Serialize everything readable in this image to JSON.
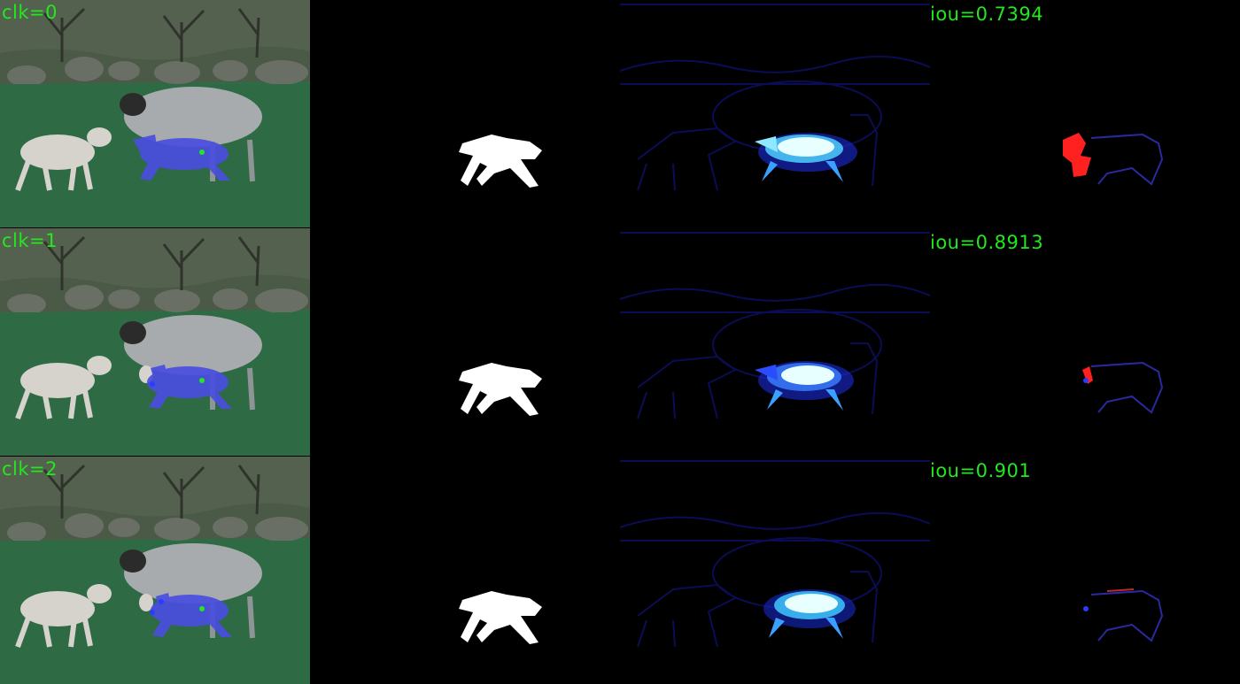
{
  "rows": [
    {
      "click_label": "clk=0",
      "iou_label": "iou=0.7394"
    },
    {
      "click_label": "clk=1",
      "iou_label": "iou=0.8913"
    },
    {
      "click_label": "clk=2",
      "iou_label": "iou=0.901"
    }
  ],
  "colors": {
    "label_text": "#22e81e",
    "grass": "#2e6a44",
    "overlay_mask": "#4a4ee0",
    "positive_click": "#22e81e",
    "negative_click": "#2a3cff",
    "false_negative": "#ff2020",
    "false_positive": "#2030ff",
    "heatmap_high": "#e8ffff",
    "heatmap_low": "#0a0a6a"
  }
}
